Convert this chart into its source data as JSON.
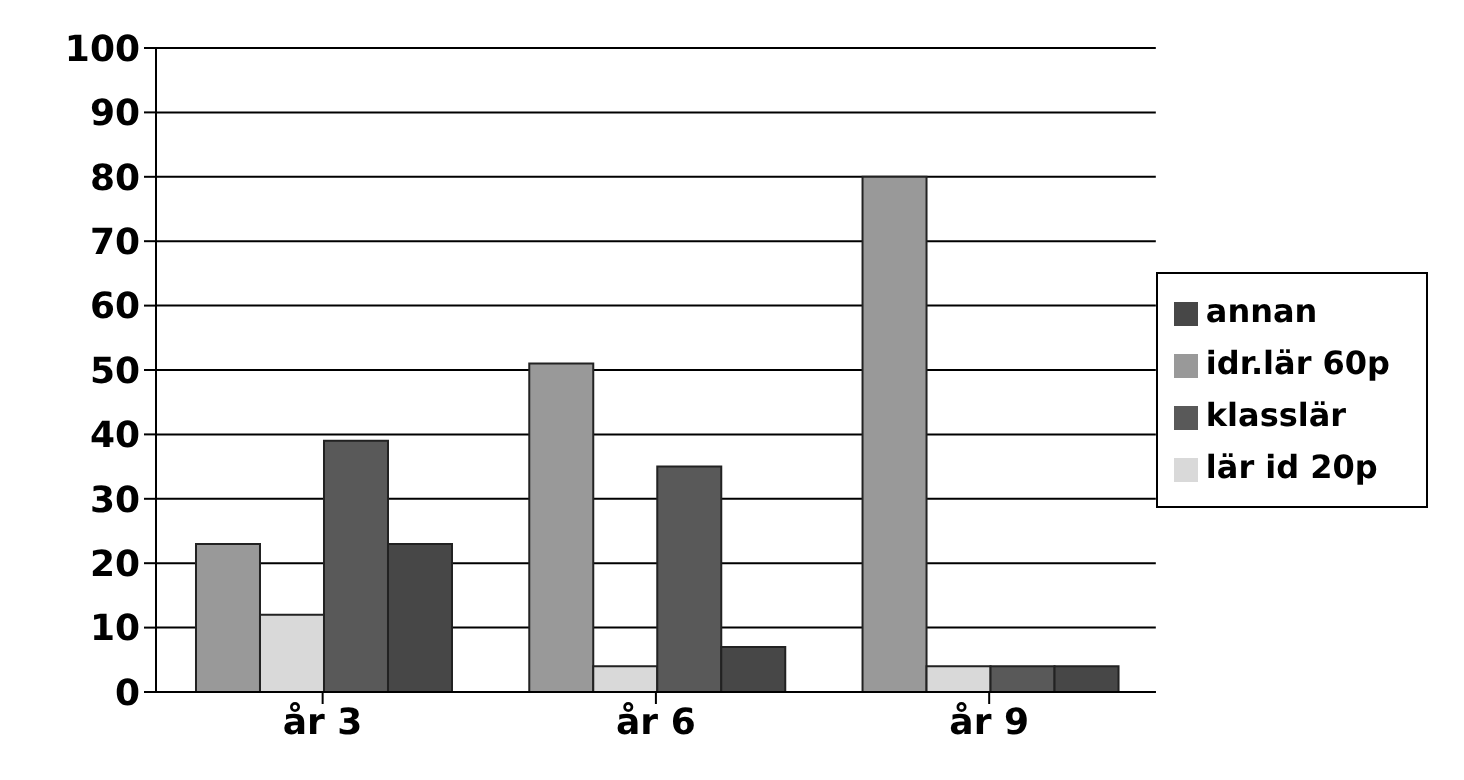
{
  "chart_data": {
    "type": "bar",
    "categories": [
      "år 3",
      "år 6",
      "år 9"
    ],
    "series": [
      {
        "name": "idr.lär 60p",
        "color": "#999999",
        "values": [
          23,
          51,
          80
        ]
      },
      {
        "name": "lär id 20p",
        "color": "#d9d9d9",
        "values": [
          12,
          4,
          4
        ]
      },
      {
        "name": "klasslär",
        "color": "#595959",
        "values": [
          39,
          35,
          4
        ]
      },
      {
        "name": "annan",
        "color": "#474747",
        "values": [
          23,
          7,
          4
        ]
      }
    ],
    "ylim": [
      0,
      100
    ],
    "yticks": [
      0,
      10,
      20,
      30,
      40,
      50,
      60,
      70,
      80,
      90,
      100
    ],
    "grid": "y",
    "legend": "right"
  }
}
